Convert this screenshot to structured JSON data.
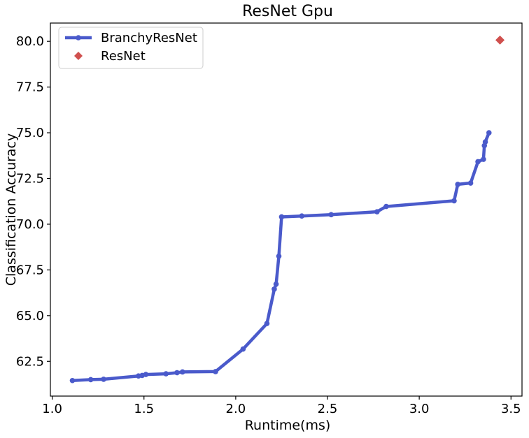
{
  "chart_data": {
    "type": "line",
    "title": "ResNet Gpu",
    "xlabel": "Runtime(ms)",
    "ylabel": "Classification Accuracy",
    "xlim": [
      0.99,
      3.56
    ],
    "ylim": [
      60.6,
      81.0
    ],
    "xticks": [
      1.0,
      1.5,
      2.0,
      2.5,
      3.0,
      3.5
    ],
    "xtick_labels": [
      "1.0",
      "1.5",
      "2.0",
      "2.5",
      "3.0",
      "3.5"
    ],
    "yticks": [
      62.5,
      65.0,
      67.5,
      70.0,
      72.5,
      75.0,
      77.5,
      80.0
    ],
    "ytick_labels": [
      "62.5",
      "65.0",
      "67.5",
      "70.0",
      "72.5",
      "75.0",
      "77.5",
      "80.0"
    ],
    "grid": false,
    "legend_position": "top-left",
    "series": [
      {
        "name": "BranchyResNet",
        "kind": "line-markers",
        "color": "#4a5acb",
        "x": [
          1.11,
          1.21,
          1.28,
          1.47,
          1.49,
          1.51,
          1.62,
          1.68,
          1.71,
          1.89,
          2.04,
          2.17,
          2.21,
          2.22,
          2.235,
          2.25,
          2.36,
          2.52,
          2.77,
          2.82,
          3.19,
          3.21,
          3.28,
          3.32,
          3.35,
          3.355,
          3.36,
          3.38
        ],
        "y": [
          61.45,
          61.5,
          61.52,
          61.7,
          61.73,
          61.78,
          61.82,
          61.88,
          61.92,
          61.94,
          63.17,
          64.57,
          66.45,
          66.72,
          68.25,
          70.4,
          70.45,
          70.52,
          70.68,
          70.97,
          71.28,
          72.18,
          72.25,
          73.42,
          73.55,
          74.3,
          74.5,
          75.0
        ]
      },
      {
        "name": "ResNet",
        "kind": "marker",
        "marker": "diamond",
        "color": "#d0504e",
        "x": [
          3.44
        ],
        "y": [
          80.07
        ]
      }
    ]
  }
}
